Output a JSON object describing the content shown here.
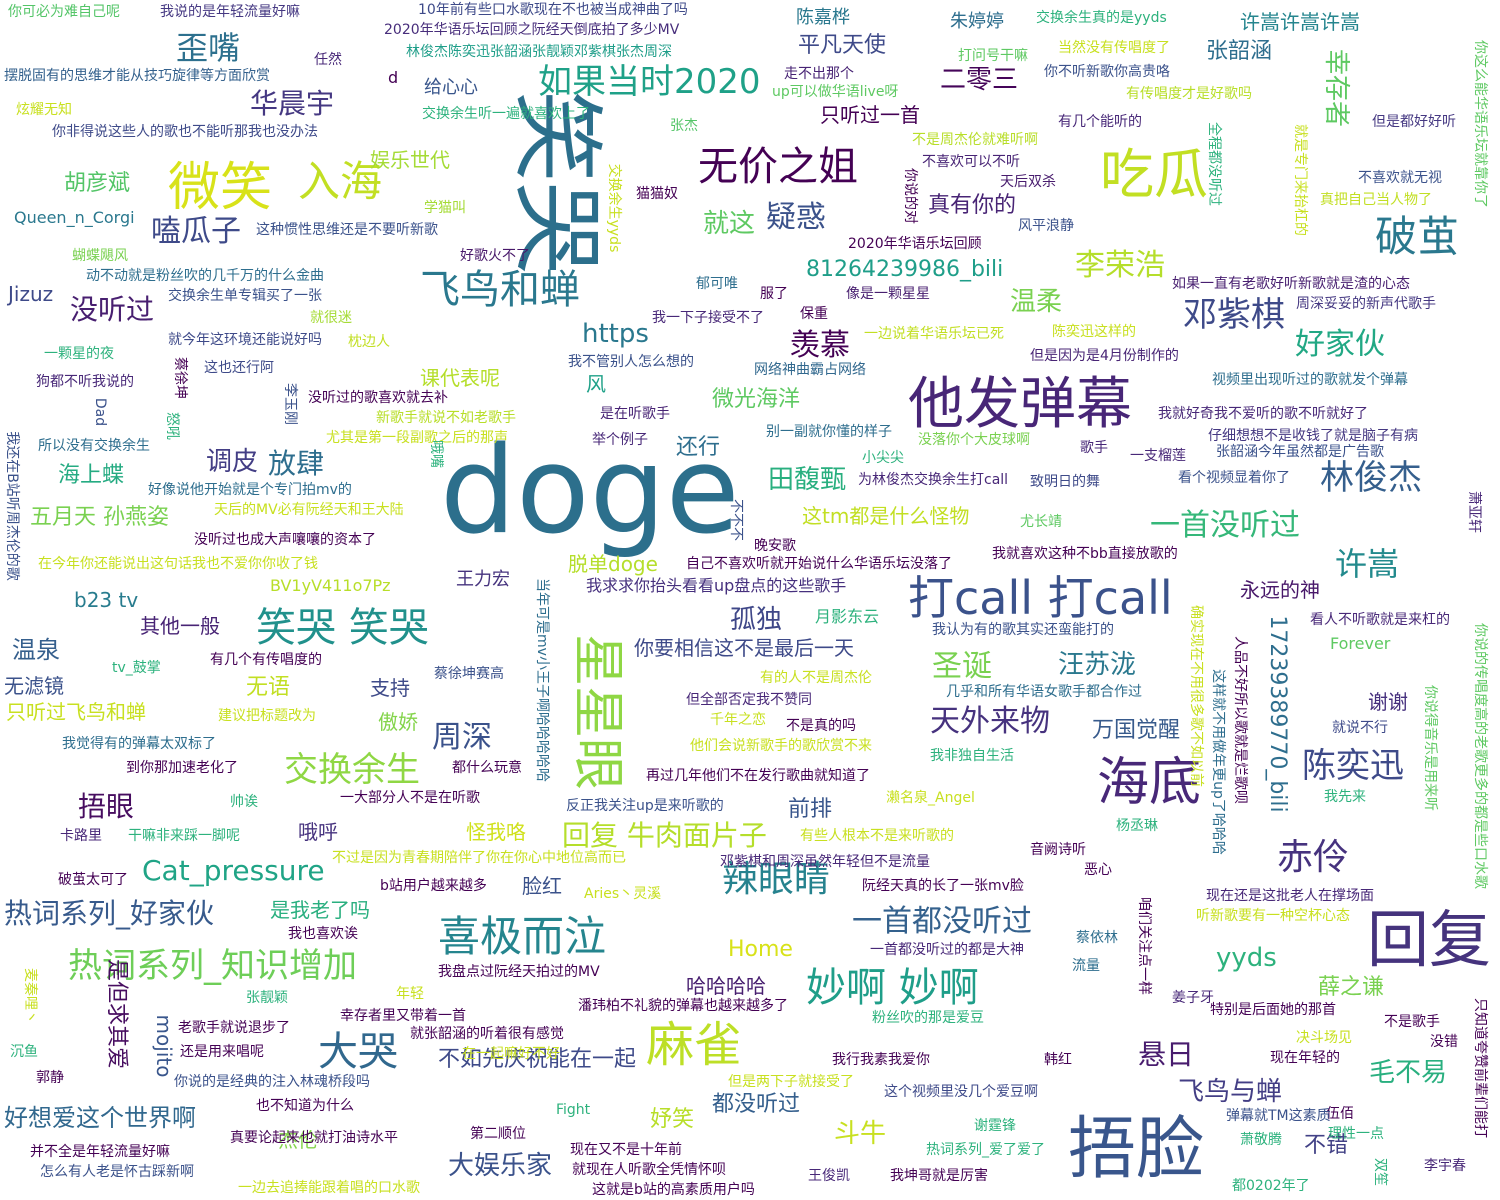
{
  "words": [
    {
      "text": "doge",
      "color": "#2c6f8c"
    },
    {
      "text": "笑哭",
      "color": "#2c6f8c"
    },
    {
      "text": "他发弹幕",
      "color": "#482677"
    },
    {
      "text": "捂脸",
      "color": "#39568c"
    },
    {
      "text": "回复",
      "color": "#45337d"
    },
    {
      "text": "微笑",
      "color": "#d8e219"
    },
    {
      "text": "入海",
      "color": "#c2df23"
    },
    {
      "text": "吃瓜",
      "color": "#c2df23"
    },
    {
      "text": "星星眼",
      "color": "#8fd744"
    },
    {
      "text": "打call 打call",
      "color": "#3b528b"
    },
    {
      "text": "海底",
      "color": "#482878"
    },
    {
      "text": "喜极而泣",
      "color": "#25858e"
    },
    {
      "text": "麻雀",
      "color": "#bddf26"
    },
    {
      "text": "大哭",
      "color": "#31688e"
    },
    {
      "text": "飞鸟和蝉",
      "color": "#2a788e"
    },
    {
      "text": "无价之姐",
      "color": "#440154"
    },
    {
      "text": "如果当时2020",
      "color": "#1fa188"
    },
    {
      "text": "破茧",
      "color": "#2a788e"
    },
    {
      "text": "笑哭 笑哭",
      "color": "#21918c"
    },
    {
      "text": "热词系列_知识增加",
      "color": "#6ece58"
    },
    {
      "text": "妙啊 妙啊",
      "color": "#1f9e89"
    },
    {
      "text": "辣眼睛",
      "color": "#26828e"
    },
    {
      "text": "一首都没听过",
      "color": "#34618d"
    },
    {
      "text": "交换余生",
      "color": "#8fd744"
    },
    {
      "text": "歪嘴",
      "color": "#2d708e"
    },
    {
      "text": "华晨宇",
      "color": "#453882"
    },
    {
      "text": "嗑瓜子",
      "color": "#3e4a89"
    },
    {
      "text": "疑惑",
      "color": "#3b528b"
    },
    {
      "text": "就这",
      "color": "#5ec962"
    },
    {
      "text": "没听过",
      "color": "#481f70"
    },
    {
      "text": "https",
      "color": "#2a788e"
    },
    {
      "text": "羡慕",
      "color": "#440154"
    },
    {
      "text": "邓紫棋",
      "color": "#3e4a89"
    },
    {
      "text": "李荣浩",
      "color": "#b5de2b"
    },
    {
      "text": "好家伙",
      "color": "#22a884"
    },
    {
      "text": "温柔",
      "color": "#7ad151"
    },
    {
      "text": "81264239986_bili",
      "color": "#1f9e89"
    },
    {
      "text": "林俊杰",
      "color": "#355f8d"
    },
    {
      "text": "一首没听过",
      "color": "#35b779"
    },
    {
      "text": "许嵩",
      "color": "#238a8d"
    },
    {
      "text": "田馥甄",
      "color": "#29af7f"
    },
    {
      "text": "圣诞",
      "color": "#7ad151"
    },
    {
      "text": "汪苏泷",
      "color": "#2a788e"
    },
    {
      "text": "天外来物",
      "color": "#46327e"
    },
    {
      "text": "陈奕迅",
      "color": "#3e4a89"
    },
    {
      "text": "赤伶",
      "color": "#46327e"
    },
    {
      "text": "周深",
      "color": "#3b528b"
    },
    {
      "text": "回复 牛肉面片子",
      "color": "#b5de2b"
    },
    {
      "text": "Cat_pressure",
      "color": "#20a486"
    },
    {
      "text": "热词系列_好家伙",
      "color": "#375a8c"
    },
    {
      "text": "捂眼",
      "color": "#470d60"
    },
    {
      "text": "放肆",
      "color": "#2e6e8e"
    },
    {
      "text": "调皮",
      "color": "#433e85"
    },
    {
      "text": "孤独",
      "color": "#3f4788"
    },
    {
      "text": "悬日",
      "color": "#481c6e"
    },
    {
      "text": "飞鸟与蝉",
      "color": "#433e85"
    },
    {
      "text": "毛不易",
      "color": "#29af7f"
    },
    {
      "text": "yyds",
      "color": "#2db27d"
    },
    {
      "text": "薛之谦",
      "color": "#7ad151"
    },
    {
      "text": "斗牛",
      "color": "#c8e020"
    },
    {
      "text": "大娱乐家",
      "color": "#3b528b"
    },
    {
      "text": "好想爱这个世界啊",
      "color": "#31688e"
    },
    {
      "text": "mojito",
      "color": "#39568c"
    },
    {
      "text": "是但求其爱",
      "color": "#470d60"
    },
    {
      "text": "17239389770_bili",
      "color": "#2e6e8e"
    },
    {
      "text": "胡彦斌",
      "color": "#54c568"
    },
    {
      "text": "娱乐世代",
      "color": "#a5db36"
    },
    {
      "text": "幸存者",
      "color": "#5ec962"
    },
    {
      "text": "二零三",
      "color": "#450559"
    },
    {
      "text": "平凡天使",
      "color": "#3e4a89"
    },
    {
      "text": "许嵩许嵩许嵩",
      "color": "#25858e"
    },
    {
      "text": "张韶涵",
      "color": "#2e6e8e"
    },
    {
      "text": "真有你的",
      "color": "#482475"
    },
    {
      "text": "微光海洋",
      "color": "#5ec962"
    },
    {
      "text": "还行",
      "color": "#2e6e8e"
    },
    {
      "text": "海上蝶",
      "color": "#25ab82"
    },
    {
      "text": "五月天 孙燕姿",
      "color": "#7ad151"
    },
    {
      "text": "温泉",
      "color": "#355f8d"
    },
    {
      "text": "无滤镜",
      "color": "#3b528b"
    },
    {
      "text": "只听过飞鸟和蝉",
      "color": "#c8e020"
    },
    {
      "text": "无语",
      "color": "#c2df23"
    },
    {
      "text": "支持",
      "color": "#3e4a89"
    },
    {
      "text": "傲娇",
      "color": "#84d44b"
    },
    {
      "text": "前排",
      "color": "#39568c"
    },
    {
      "text": "怪我咯",
      "color": "#d0e11c"
    },
    {
      "text": "哦呼",
      "color": "#46327e"
    },
    {
      "text": "脸红",
      "color": "#3b528b"
    },
    {
      "text": "是我老了吗",
      "color": "#29af7f"
    },
    {
      "text": "Home",
      "color": "#d8e219"
    },
    {
      "text": "哈哈哈哈",
      "color": "#481f70"
    },
    {
      "text": "杰伦",
      "color": "#84d44b"
    },
    {
      "text": "不如先庆祝能在一起",
      "color": "#3e4a89"
    },
    {
      "text": "都没听过",
      "color": "#355f8d"
    },
    {
      "text": "妤笑",
      "color": "#b8de29"
    },
    {
      "text": "不错",
      "color": "#424186"
    },
    {
      "text": "万国觉醒",
      "color": "#375a8c"
    },
    {
      "text": "谢谢",
      "color": "#46307e"
    },
    {
      "text": "永远的神",
      "color": "#48186a"
    },
    {
      "text": "其他一般",
      "color": "#482475"
    },
    {
      "text": "b23 tv",
      "color": "#287c8e"
    },
    {
      "text": "风",
      "color": "#1fa188"
    },
    {
      "text": "课代表呢",
      "color": "#b5de2b"
    },
    {
      "text": "只听过一首",
      "color": "#440154"
    },
    {
      "text": "给心心",
      "color": "#39568c"
    },
    {
      "text": "朱婷婷",
      "color": "#2e6e8e"
    },
    {
      "text": "陈嘉桦",
      "color": "#2a788e"
    },
    {
      "text": "Jizuz",
      "color": "#3e4a89"
    },
    {
      "text": "Queen_n_Corgi",
      "color": "#2a788e"
    },
    {
      "text": "脱单doge",
      "color": "#b5de2b"
    },
    {
      "text": "这tm都是什么怪物",
      "color": "#c2df23"
    },
    {
      "text": "我求求你抬头看看up盘点的这些歌手",
      "color": "#46307e"
    },
    {
      "text": "你要相信这不是最后一天",
      "color": "#3e4a89"
    },
    {
      "text": "王力宏",
      "color": "#46337e"
    },
    {
      "text": "BV1yV411o7Pz",
      "color": "#b8de29"
    },
    {
      "text": "月影东云",
      "color": "#2db27d"
    },
    {
      "text": "Forever",
      "color": "#5ec962"
    },
    {
      "text": "你可必为难自己呢",
      "color": "#54c568"
    },
    {
      "text": "我说的是年轻流量好嘛",
      "color": "#453882"
    },
    {
      "text": "10年前有些口水歌现在不也被当成神曲了吗",
      "color": "#3e4a89"
    },
    {
      "text": "2020年华语乐坛回顾之阮经天倒底拍了多少MV",
      "color": "#472d7b"
    },
    {
      "text": "林俊杰陈奕迅张韶涵张靓颖邓紫棋张杰周深",
      "color": "#1f9e89"
    },
    {
      "text": "交换余生真的是yyds",
      "color": "#2db27d"
    },
    {
      "text": "打问号干嘛",
      "color": "#5ec962"
    },
    {
      "text": "当然没有传唱度了",
      "color": "#c8e020"
    },
    {
      "text": "你不听新歌你高贵咯",
      "color": "#3b528b"
    },
    {
      "text": "摆脱固有的思维才能从技巧旋律等方面欣赏",
      "color": "#34618d"
    },
    {
      "text": "任然",
      "color": "#482878"
    },
    {
      "text": "走不出那个",
      "color": "#482475"
    },
    {
      "text": "up可以做华语live呀",
      "color": "#5ec962"
    },
    {
      "text": "有传唱度才是好歌吗",
      "color": "#b8de29"
    },
    {
      "text": "炫耀无知",
      "color": "#c8e020"
    },
    {
      "text": "交换余生听一遍就喜欢上了",
      "color": "#2db27d"
    },
    {
      "text": "你非得说这些人的歌也不能听那我也没办法",
      "color": "#3e4a89"
    },
    {
      "text": "张杰",
      "color": "#54c568"
    },
    {
      "text": "不是周杰伦就难听啊",
      "color": "#b8de29"
    },
    {
      "text": "有几个能听的",
      "color": "#482878"
    },
    {
      "text": "但是都好好听",
      "color": "#453882"
    },
    {
      "text": "不喜欢可以不听",
      "color": "#482475"
    },
    {
      "text": "天后双杀",
      "color": "#481c6e"
    },
    {
      "text": "不喜欢就无视",
      "color": "#3b528b"
    },
    {
      "text": "学猫叫",
      "color": "#a5db36"
    },
    {
      "text": "猫猫奴",
      "color": "#440154"
    },
    {
      "text": "这种惯性思维还是不要听新歌",
      "color": "#3b528b"
    },
    {
      "text": "风平浪静",
      "color": "#3b528b"
    },
    {
      "text": "真把自己当人物了",
      "color": "#c2df23"
    },
    {
      "text": "蝴蝶飓风",
      "color": "#7ad151"
    },
    {
      "text": "好歌火不了",
      "color": "#48186a"
    },
    {
      "text": "2020年华语乐坛回顾",
      "color": "#440154"
    },
    {
      "text": "动不动就是粉丝吹的几千万的什么金曲",
      "color": "#2e6e8e"
    },
    {
      "text": "郁可唯",
      "color": "#2e6e8e"
    },
    {
      "text": "如果一直有老歌好听新歌就是渣的心态",
      "color": "#481f70"
    },
    {
      "text": "交换余生单专辑买了一张",
      "color": "#3b528b"
    },
    {
      "text": "服了",
      "color": "#440154"
    },
    {
      "text": "像是一颗星星",
      "color": "#481f70"
    },
    {
      "text": "保重",
      "color": "#440154"
    },
    {
      "text": "周深妥妥的新声代歌手",
      "color": "#453882"
    },
    {
      "text": "就很迷",
      "color": "#a5db36"
    },
    {
      "text": "我一下子接受不了",
      "color": "#482878"
    },
    {
      "text": "枕边人",
      "color": "#c2df23"
    },
    {
      "text": "一边说着华语乐坛已死",
      "color": "#c2df23"
    },
    {
      "text": "陈奕迅这样的",
      "color": "#c8e020"
    },
    {
      "text": "就今年这环境还能说好吗",
      "color": "#3e4a89"
    },
    {
      "text": "一颗星的夜",
      "color": "#2db27d"
    },
    {
      "text": "但是因为是4月份制作的",
      "color": "#482475"
    },
    {
      "text": "我不管别人怎么想的",
      "color": "#3b528b"
    },
    {
      "text": "网络神曲霸占网络",
      "color": "#31688e"
    },
    {
      "text": "这也还行阿",
      "color": "#3e4a89"
    },
    {
      "text": "视频里出现听过的歌就发个弹幕",
      "color": "#2e6e8e"
    },
    {
      "text": "狗都不听我说的",
      "color": "#482878"
    },
    {
      "text": "没听过的歌喜欢就去补",
      "color": "#440154"
    },
    {
      "text": "新歌手就说不如老歌手",
      "color": "#b8de29"
    },
    {
      "text": "是在听歌手",
      "color": "#482475"
    },
    {
      "text": "我就好奇我不爱听的歌不听就好了",
      "color": "#482878"
    },
    {
      "text": "尤其是第一段副歌之后的那声",
      "color": "#c8e020"
    },
    {
      "text": "别一副就你懂的样子",
      "color": "#2e6e8e"
    },
    {
      "text": "举个例子",
      "color": "#482878"
    },
    {
      "text": "没落你个大皮球啊",
      "color": "#7ad151"
    },
    {
      "text": "仔细想想不是收钱了就是脑子有病",
      "color": "#453882"
    },
    {
      "text": "所以没有交换余生",
      "color": "#2e6e8e"
    },
    {
      "text": "歌手",
      "color": "#482878"
    },
    {
      "text": "一支榴莲",
      "color": "#482878"
    },
    {
      "text": "张韶涵今年虽然都是广告歌",
      "color": "#3b528b"
    },
    {
      "text": "小尖尖",
      "color": "#2db27d"
    },
    {
      "text": "好像说他开始就是个专门拍mv的",
      "color": "#2e6e8e"
    },
    {
      "text": "天后的MV必有阮经天和王大陆",
      "color": "#c8e020"
    },
    {
      "text": "为林俊杰交换余生打call",
      "color": "#482878"
    },
    {
      "text": "致明日的舞",
      "color": "#3e4a89"
    },
    {
      "text": "看个视频显着你了",
      "color": "#3b528b"
    },
    {
      "text": "尤长靖",
      "color": "#5ec962"
    },
    {
      "text": "没听过也成大声嚷嚷的资本了",
      "color": "#440154"
    },
    {
      "text": "晚安歌",
      "color": "#440154"
    },
    {
      "text": "自己不喜欢听就开始说什么华语乐坛没落了",
      "color": "#440154"
    },
    {
      "text": "我就喜欢这种不bb直接放歌的",
      "color": "#440154"
    },
    {
      "text": "在今年你还能说出这句话我也不爱你你收了钱",
      "color": "#c8e020"
    },
    {
      "text": "看人不听歌就是来杠的",
      "color": "#482878"
    },
    {
      "text": "我认为有的歌其实还蛮能打的",
      "color": "#3b528b"
    },
    {
      "text": "有几个有传唱度的",
      "color": "#440154"
    },
    {
      "text": "tv_鼓掌",
      "color": "#2db27d"
    },
    {
      "text": "蔡徐坤赛高",
      "color": "#3b528b"
    },
    {
      "text": "有的人不是周杰伦",
      "color": "#c8e020"
    },
    {
      "text": "但全部否定我不赞同",
      "color": "#482878"
    },
    {
      "text": "几乎和所有华语女歌手都合作过",
      "color": "#2e6e8e"
    },
    {
      "text": "建议把标题改为",
      "color": "#c8e020"
    },
    {
      "text": "千年之恋",
      "color": "#c8e020"
    },
    {
      "text": "不是真的吗",
      "color": "#440154"
    },
    {
      "text": "就说不行",
      "color": "#3e4a89"
    },
    {
      "text": "他们会说新歌手的歌欣赏不来",
      "color": "#c8e020"
    },
    {
      "text": "我非独自生活",
      "color": "#2db27d"
    },
    {
      "text": "我觉得有的弹幕太双标了",
      "color": "#2e6e8e"
    },
    {
      "text": "到你那加速老化了",
      "color": "#440154"
    },
    {
      "text": "都什么玩意",
      "color": "#440154"
    },
    {
      "text": "再过几年他们不在发行歌曲就知道了",
      "color": "#440154"
    },
    {
      "text": "一大部分人不是在听歌",
      "color": "#440154"
    },
    {
      "text": "反正我关注up是来听歌的",
      "color": "#3b528b"
    },
    {
      "text": "濑名泉_Angel",
      "color": "#c8e020"
    },
    {
      "text": "我先来",
      "color": "#2db27d"
    },
    {
      "text": "帅诶",
      "color": "#2db27d"
    },
    {
      "text": "卡路里",
      "color": "#482878"
    },
    {
      "text": "干嘛非来踩一脚呢",
      "color": "#2db27d"
    },
    {
      "text": "有些人根本不是来听歌的",
      "color": "#c8e020"
    },
    {
      "text": "杨丞琳",
      "color": "#2db27d"
    },
    {
      "text": "不过是因为青春期陪伴了你在你心中地位高而已",
      "color": "#c8e020"
    },
    {
      "text": "邓紫棋和周深虽然年轻但不是流量",
      "color": "#482878"
    },
    {
      "text": "音阙诗听",
      "color": "#440154"
    },
    {
      "text": "恶心",
      "color": "#440154"
    },
    {
      "text": "破茧太可了",
      "color": "#440154"
    },
    {
      "text": "b站用户越来越多",
      "color": "#440154"
    },
    {
      "text": "Aries丶灵溪",
      "color": "#c8e020"
    },
    {
      "text": "阮经天真的长了一张mv脸",
      "color": "#440154"
    },
    {
      "text": "现在还是这批老人在撑场面",
      "color": "#482878"
    },
    {
      "text": "听新歌要有一种空杯心态",
      "color": "#c8e020"
    },
    {
      "text": "我也喜欢诶",
      "color": "#440154"
    },
    {
      "text": "一首都没听过的都是大神",
      "color": "#482878"
    },
    {
      "text": "蔡依林",
      "color": "#2e6e8e"
    },
    {
      "text": "流量",
      "color": "#2e6e8e"
    },
    {
      "text": "我盘点过阮经天拍过的MV",
      "color": "#440154"
    },
    {
      "text": "年轻",
      "color": "#c8e020"
    },
    {
      "text": "张靓颖",
      "color": "#2db27d"
    },
    {
      "text": "幸存者里又带着一首",
      "color": "#440154"
    },
    {
      "text": "潘玮柏不礼貌的弹幕也越来越多了",
      "color": "#440154"
    },
    {
      "text": "姜子牙",
      "color": "#482878"
    },
    {
      "text": "特别是后面她的那首",
      "color": "#440154"
    },
    {
      "text": "不是歌手",
      "color": "#440154"
    },
    {
      "text": "决斗场见",
      "color": "#c8e020"
    },
    {
      "text": "没错",
      "color": "#440154"
    },
    {
      "text": "老歌手就说退步了",
      "color": "#440154"
    },
    {
      "text": "就张韶涵的听着很有感觉",
      "color": "#440154"
    },
    {
      "text": "还是用来唱呢",
      "color": "#440154"
    },
    {
      "text": "在一起嘛好不好",
      "color": "#c8e020"
    },
    {
      "text": "现在年轻的",
      "color": "#440154"
    },
    {
      "text": "沉鱼",
      "color": "#2db27d"
    },
    {
      "text": "郭静",
      "color": "#440154"
    },
    {
      "text": "你说的是经典的注入林魂桥段吗",
      "color": "#3b528b"
    },
    {
      "text": "我行我素我爱你",
      "color": "#440154"
    },
    {
      "text": "但是两下子就接受了",
      "color": "#c8e020"
    },
    {
      "text": "这个视频里没几个爱豆啊",
      "color": "#3e4a89"
    },
    {
      "text": "韩红",
      "color": "#440154"
    },
    {
      "text": "伍佰",
      "color": "#440154"
    },
    {
      "text": "也不知道为什么",
      "color": "#440154"
    },
    {
      "text": "Fight",
      "color": "#2db27d"
    },
    {
      "text": "弹幕就TM这素质",
      "color": "#3b528b"
    },
    {
      "text": "谢霆锋",
      "color": "#2db27d"
    },
    {
      "text": "理性一点",
      "color": "#2db27d"
    },
    {
      "text": "真要论起来也就打油诗水平",
      "color": "#440154"
    },
    {
      "text": "第二顺位",
      "color": "#440154"
    },
    {
      "text": "并不全是年轻流量好嘛",
      "color": "#440154"
    },
    {
      "text": "现在又不是十年前",
      "color": "#440154"
    },
    {
      "text": "热词系列_爱了爱了",
      "color": "#2db27d"
    },
    {
      "text": "萧敬腾",
      "color": "#2db27d"
    },
    {
      "text": "怎么有人老是怀古踩新啊",
      "color": "#3b528b"
    },
    {
      "text": "就现在人听歌全凭情怀呗",
      "color": "#440154"
    },
    {
      "text": "王俊凯",
      "color": "#482878"
    },
    {
      "text": "我坤哥就是厉害",
      "color": "#440154"
    },
    {
      "text": "李宇春",
      "color": "#482878"
    },
    {
      "text": "一边去追捧能跟着唱的口水歌",
      "color": "#c8e020"
    },
    {
      "text": "这就是b站的高素质用户吗",
      "color": "#440154"
    },
    {
      "text": "都0202年了",
      "color": "#2db27d"
    },
    {
      "text": "双笙",
      "color": "#2db27d"
    },
    {
      "text": "麦秦哩丶",
      "color": "#c8e020"
    },
    {
      "text": "萧亚轩",
      "color": "#482878"
    },
    {
      "text": "d",
      "color": "#440154"
    },
    {
      "text": "粉丝吹的那是爱豆",
      "color": "#2db27d"
    },
    {
      "text": "咱们关注点一样",
      "color": "#440154"
    },
    {
      "text": "Dad",
      "color": "#3b528b"
    },
    {
      "text": "李玉刚",
      "color": "#3b528b"
    },
    {
      "text": "蔡徐坤",
      "color": "#440154"
    },
    {
      "text": "怒吼",
      "color": "#2db27d"
    },
    {
      "text": "哦嘴",
      "color": "#2db27d"
    },
    {
      "text": "我还在B站听周杰伦的歌",
      "color": "#3b528b"
    },
    {
      "text": "当年可是mv小王子啊哈哈哈哈哈",
      "color": "#2e6e8e"
    },
    {
      "text": "不不不",
      "color": "#3b528b"
    },
    {
      "text": "你说的对",
      "color": "#440154"
    },
    {
      "text": "交换余生yyds",
      "color": "#c8e020"
    },
    {
      "text": "全程都没听过",
      "color": "#2db27d"
    },
    {
      "text": "就是专门来抬杠的",
      "color": "#c8e020"
    },
    {
      "text": "你这么能华语乐坛就靠你了",
      "color": "#5ec962"
    },
    {
      "text": "确实现在不用很多歌不如以前",
      "color": "#c8e020"
    },
    {
      "text": "这样就不用做年更up了哈哈哈",
      "color": "#2e6e8e"
    },
    {
      "text": "人品不好所以歌就是烂歌呗",
      "color": "#440154"
    },
    {
      "text": "你说得音乐是用来听",
      "color": "#5ec962"
    },
    {
      "text": "你说的传唱度高的老歌更多的都是些口水歌",
      "color": "#5ec962"
    },
    {
      "text": "只知道夸赞前辈们能打",
      "color": "#440154"
    }
  ]
}
